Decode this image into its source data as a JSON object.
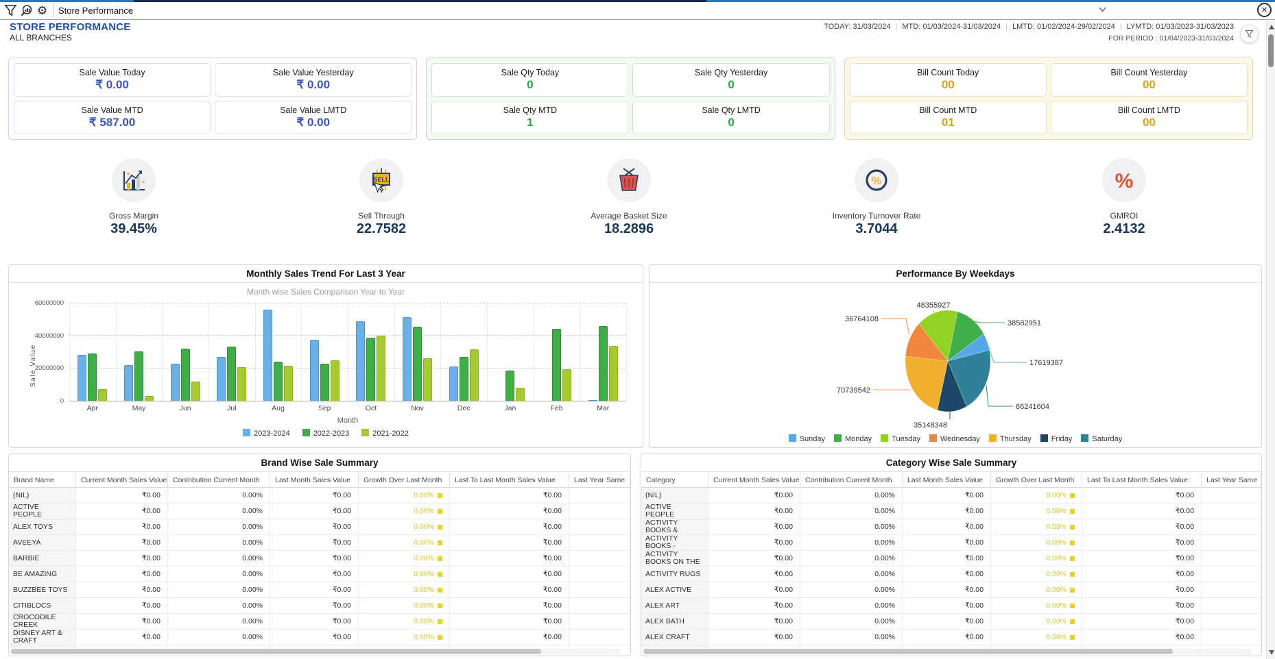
{
  "toolbar": {
    "combo_value": "Store Performance",
    "close_label": "✕"
  },
  "header": {
    "title": "STORE PERFORMANCE",
    "subtitle": "ALL BRANCHES",
    "date_segments": [
      "TODAY: 31/03/2024",
      "MTD: 01/03/2024-31/03/2024",
      "LMTD: 01/02/2024-29/02/2024",
      "LYMTD: 01/03/2023-31/03/2023"
    ],
    "period": "FOR PERIOD : 01/04/2023-31/03/2024"
  },
  "kpi_groups": [
    {
      "id": "sale-value",
      "accent": "#3b55c4",
      "border": "#c9d0ee",
      "card_border": "#d9def2",
      "bg": "#ffffff",
      "cards": [
        {
          "label": "Sale Value Today",
          "value": "₹ 0.00"
        },
        {
          "label": "Sale Value Yesterday",
          "value": "₹ 0.00"
        },
        {
          "label": "Sale Value MTD",
          "value": "₹ 587.00"
        },
        {
          "label": "Sale Value LMTD",
          "value": "₹ 0.00"
        }
      ]
    },
    {
      "id": "sale-qty",
      "accent": "#28a745",
      "border": "#bcdcbc",
      "card_border": "#cfe7cf",
      "bg": "#f3faf3",
      "cards": [
        {
          "label": "Sale Qty Today",
          "value": "0"
        },
        {
          "label": "Sale Qty Yesterday",
          "value": "0"
        },
        {
          "label": "Sale Qty MTD",
          "value": "1"
        },
        {
          "label": "Sale Qty LMTD",
          "value": "0"
        }
      ]
    },
    {
      "id": "bill-count",
      "accent": "#e2a01c",
      "border": "#e7d9ab",
      "card_border": "#eee0b8",
      "bg": "#fbf7e9",
      "cards": [
        {
          "label": "Bill Count Today",
          "value": "00"
        },
        {
          "label": "Bill Count Yesterday",
          "value": "00"
        },
        {
          "label": "Bill Count MTD",
          "value": "01"
        },
        {
          "label": "Bill Count LMTD",
          "value": "00"
        }
      ]
    }
  ],
  "metrics": [
    {
      "label": "Gross Margin",
      "value": "39.45%",
      "icon": "growth-chart"
    },
    {
      "label": "Sell Through",
      "value": "22.7582",
      "icon": "sell-sign"
    },
    {
      "label": "Average Basket Size",
      "value": "18.2896",
      "icon": "basket"
    },
    {
      "label": "Inventory Turnover Rate",
      "value": "3.7044",
      "icon": "percent-ring"
    },
    {
      "label": "GMROI",
      "value": "2.4132",
      "icon": "percent"
    }
  ],
  "chart_data": [
    {
      "type": "bar",
      "title": "Monthly Sales Trend For Last 3 Year",
      "subtitle": "Month wise Sales Comparison Year to Year",
      "xlabel": "Month",
      "ylabel": "Sale Value",
      "ylim": [
        0,
        60000000
      ],
      "yticks": [
        0,
        20000000,
        40000000,
        60000000
      ],
      "grid": true,
      "legend_position": "bottom",
      "categories": [
        "Apr",
        "May",
        "Jun",
        "Jul",
        "Aug",
        "Sep",
        "Oct",
        "Nov",
        "Dec",
        "Jan",
        "Feb",
        "Mar"
      ],
      "series": [
        {
          "name": "2023-2024",
          "color": "#6ab0e8",
          "border": "#4e93c9",
          "values": [
            28500000,
            22000000,
            23000000,
            27000000,
            56000000,
            37500000,
            49000000,
            51500000,
            21000000,
            0,
            0,
            600000
          ]
        },
        {
          "name": "2022-2023",
          "color": "#3fae47",
          "border": "#2f8d37",
          "values": [
            29000000,
            30500000,
            32000000,
            33500000,
            24000000,
            23000000,
            39000000,
            45500000,
            27000000,
            18500000,
            44500000,
            46000000
          ]
        },
        {
          "name": "2021-2022",
          "color": "#a6cb2e",
          "border": "#8ab01c",
          "values": [
            7000000,
            3000000,
            12000000,
            20500000,
            21500000,
            25000000,
            40000000,
            26000000,
            31500000,
            8000000,
            19500000,
            34000000
          ]
        }
      ]
    },
    {
      "type": "pie",
      "title": "Performance By Weekdays",
      "labels": [
        "Sunday",
        "Monday",
        "Tuesday",
        "Wednesday",
        "Thursday",
        "Friday",
        "Saturday"
      ],
      "values": [
        17619387,
        38582951,
        48355927,
        36764108,
        70739542,
        35148348,
        66241604
      ],
      "colors": [
        "#55a7e8",
        "#3fae4b",
        "#92d222",
        "#f2873c",
        "#f0b02c",
        "#1c4766",
        "#2f8099"
      ],
      "legend_position": "bottom"
    }
  ],
  "tables": [
    {
      "title": "Brand Wise Sale Summary",
      "headers": [
        "Brand Name",
        "Current Month Sales Value",
        "Contribution Current Month",
        "Last Month Sales Value",
        "Growth Over Last Month",
        "Last To Last Month Sales Value",
        "Last Year Same"
      ],
      "row_names": [
        "(NIL)",
        "ACTIVE PEOPLE",
        "ALEX TOYS",
        "AVEEYA",
        "BARBIE",
        "BE AMAZING",
        "BUZZBEE TOYS",
        "CITIBLOCS",
        "CROCODILE CREEK",
        "DISNEY ART & CRAFT",
        ""
      ],
      "row_values": [
        "₹0.00",
        "0.00%",
        "₹0.00",
        "0.00%",
        "₹0.00",
        ""
      ]
    },
    {
      "title": "Category Wise Sale Summary",
      "headers": [
        "Category",
        "Current Month Sales Value",
        "Contribution Current Month",
        "Last Month Sales Value",
        "Growth Over Last Month",
        "Last To Last Month Sales Value",
        "Last Year Same"
      ],
      "row_names": [
        "(NIL)",
        "ACTIVE PEOPLE",
        "ACTIVITY BOOKS & STICKER PADS",
        "ACTIVITY BOOKS - COLORING/PAINTI",
        "ACTIVITY BOOKS ON THE GO",
        "ACTIVITY RUGS",
        "ALEX ACTIVE",
        "ALEX ART",
        "ALEX BATH",
        "ALEX CRAFT",
        "ALEX CRAFT"
      ],
      "row_values": [
        "₹0.00",
        "0.00%",
        "₹0.00",
        "0.00%",
        "₹0.00",
        ""
      ]
    }
  ]
}
